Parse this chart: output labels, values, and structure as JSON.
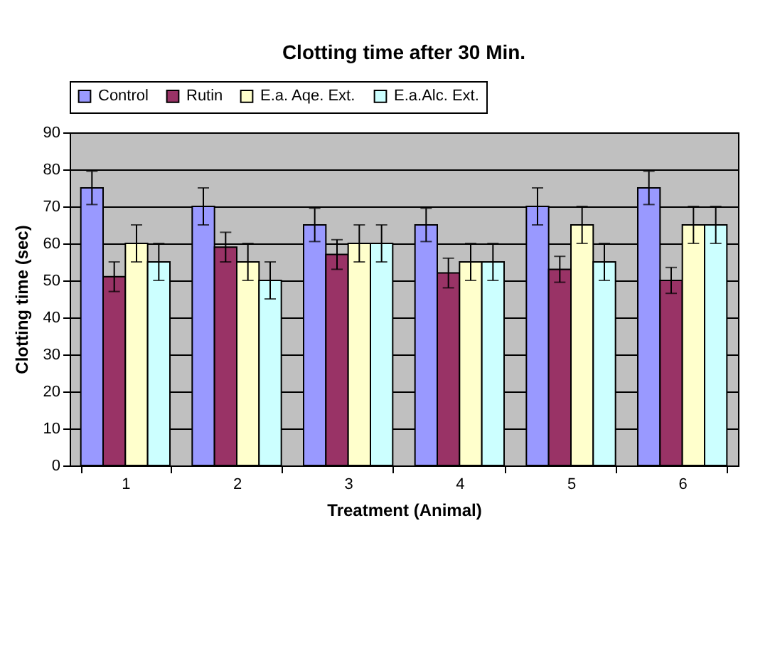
{
  "chart_data": {
    "type": "bar",
    "title": "Clotting time after 30 Min.",
    "xlabel": "Treatment (Animal)",
    "ylabel": "Clotting time (sec)",
    "categories": [
      "1",
      "2",
      "3",
      "4",
      "5",
      "6"
    ],
    "series": [
      {
        "name": "Control",
        "color": "#9999ff",
        "values": [
          75,
          70,
          65,
          65,
          70,
          75
        ],
        "errors": [
          4.5,
          5,
          4.5,
          4.5,
          5,
          4.5
        ]
      },
      {
        "name": "Rutin",
        "color": "#993366",
        "values": [
          51,
          59,
          57,
          52,
          53,
          50
        ],
        "errors": [
          4,
          4,
          4,
          4,
          3.5,
          3.5
        ]
      },
      {
        "name": "E.a. Aqe. Ext.",
        "color": "#ffffcc",
        "values": [
          60,
          55,
          60,
          55,
          65,
          65
        ],
        "errors": [
          5,
          5,
          5,
          5,
          5,
          5
        ]
      },
      {
        "name": "E.a.Alc. Ext.",
        "color": "#ccffff",
        "values": [
          55,
          50,
          60,
          55,
          55,
          65
        ],
        "errors": [
          5,
          5,
          5,
          5,
          5,
          5
        ]
      }
    ],
    "ylim": [
      0,
      90
    ],
    "yticks": [
      0,
      10,
      20,
      30,
      40,
      50,
      60,
      70,
      80,
      90
    ],
    "grid": "y",
    "legend": "top"
  }
}
